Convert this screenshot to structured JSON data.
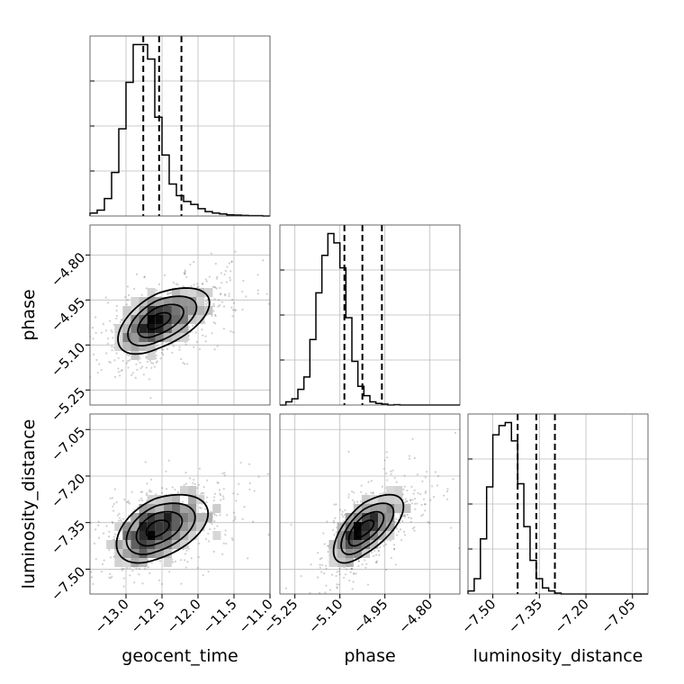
{
  "chart_data": {
    "type": "corner",
    "grid": true,
    "parameters": [
      {
        "name": "geocent_time",
        "label": "geocent_time",
        "range": [
          -13.5,
          -11.0
        ],
        "ticks": [
          -13.0,
          -12.5,
          -12.0,
          -11.5,
          -11.0
        ],
        "tick_labels": [
          "−13.0",
          "−12.5",
          "−12.0",
          "−11.5",
          "−11.0"
        ],
        "quantiles": [
          -12.76,
          -12.54,
          -12.23
        ],
        "hist_edges_start": -13.5,
        "hist_bin_width": 0.1,
        "hist_counts": [
          1,
          2,
          6,
          15,
          30,
          46,
          59,
          59,
          54,
          34,
          21,
          11,
          7,
          5,
          4,
          2.5,
          1.5,
          1,
          0.7,
          0.4,
          0.3,
          0.2,
          0.1,
          0.1,
          0
        ]
      },
      {
        "name": "phase",
        "label": "phase",
        "range": [
          -5.3,
          -4.7
        ],
        "ticks": [
          -5.25,
          -5.1,
          -4.95,
          -4.8
        ],
        "tick_labels": [
          "−5.25",
          "−5.10",
          "−4.95",
          "−4.80"
        ],
        "quantiles": [
          -5.085,
          -5.025,
          -4.96
        ],
        "hist_edges_start": -5.3,
        "hist_bin_width": 0.02,
        "hist_counts": [
          0,
          1,
          2,
          5,
          9,
          21,
          36,
          48,
          55,
          52,
          44,
          28,
          14,
          6,
          3,
          1,
          0.5,
          0.3,
          0,
          0.1,
          0,
          0,
          0,
          0,
          0,
          0,
          0,
          0,
          0,
          0
        ]
      },
      {
        "name": "luminosity_distance",
        "label": "luminosity_distance",
        "range": [
          -7.58,
          -7.0
        ],
        "ticks": [
          -7.5,
          -7.35,
          -7.2,
          -7.05
        ],
        "tick_labels": [
          "−7.50",
          "−7.35",
          "−7.20",
          "−7.05"
        ],
        "quantiles": [
          -7.42,
          -7.36,
          -7.3
        ],
        "hist_edges_start": -7.58,
        "hist_bin_width": 0.02,
        "hist_counts": [
          1,
          5,
          18,
          35,
          52,
          55,
          56,
          50,
          36,
          22,
          11,
          5,
          2,
          1,
          0.3,
          0,
          0,
          0,
          0,
          0,
          0,
          0,
          0,
          0,
          0,
          0,
          0,
          0,
          0
        ]
      }
    ],
    "pairs": [
      {
        "x": "geocent_time",
        "y": "phase",
        "mean": [
          -12.56,
          -5.02
        ],
        "sigma": [
          0.3,
          0.055
        ],
        "rho": 0.55,
        "hist2d_x_bins": 22,
        "hist2d_y_bins": 20
      },
      {
        "x": "geocent_time",
        "y": "luminosity_distance",
        "mean": [
          -12.58,
          -7.37
        ],
        "sigma": [
          0.3,
          0.055
        ],
        "rho": 0.45,
        "hist2d_x_bins": 22,
        "hist2d_y_bins": 20
      },
      {
        "x": "phase",
        "y": "luminosity_distance",
        "mean": [
          -5.02,
          -7.37
        ],
        "sigma": [
          0.055,
          0.055
        ],
        "rho": 0.65,
        "hist2d_x_bins": 22,
        "hist2d_y_bins": 20
      }
    ],
    "contour_levels_sigma": [
      0.5,
      1.0,
      1.5,
      2.0
    ],
    "scatter_point_count": 1800
  }
}
